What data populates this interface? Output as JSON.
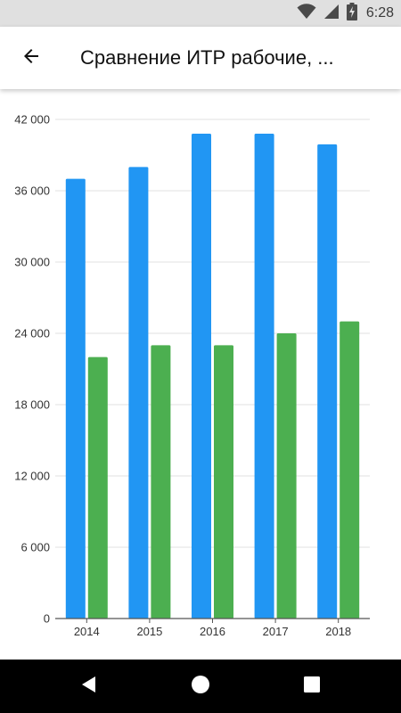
{
  "status_bar": {
    "time": "6:28",
    "icons": [
      "wifi-icon",
      "signal-icon",
      "battery-charging-icon"
    ]
  },
  "app_bar": {
    "title": "Сравнение ИТР рабочие, ...",
    "back_icon": "arrow-back-icon"
  },
  "colors": {
    "series_1": "#2196f3",
    "series_2": "#4caf50",
    "grid": "#e0e0e0",
    "axis": "#555555"
  },
  "chart_data": {
    "type": "bar",
    "title": "",
    "xlabel": "",
    "ylabel": "",
    "categories": [
      "2014",
      "2015",
      "2016",
      "2017",
      "2018"
    ],
    "series": [
      {
        "values": [
          37000,
          38000,
          40800,
          40800,
          39900
        ]
      },
      {
        "values": [
          22000,
          23000,
          23000,
          24000,
          25000
        ]
      }
    ],
    "ylim": [
      0,
      42000
    ],
    "yticks": [
      0,
      6000,
      12000,
      18000,
      24000,
      30000,
      36000,
      42000
    ],
    "ytick_labels": [
      "0",
      "6 000",
      "12 000",
      "18 000",
      "24 000",
      "30 000",
      "36 000",
      "42 000"
    ],
    "grid": true,
    "legend": "none"
  },
  "nav_bar": {
    "buttons": [
      "back-triangle-icon",
      "home-circle-icon",
      "recents-square-icon"
    ]
  }
}
